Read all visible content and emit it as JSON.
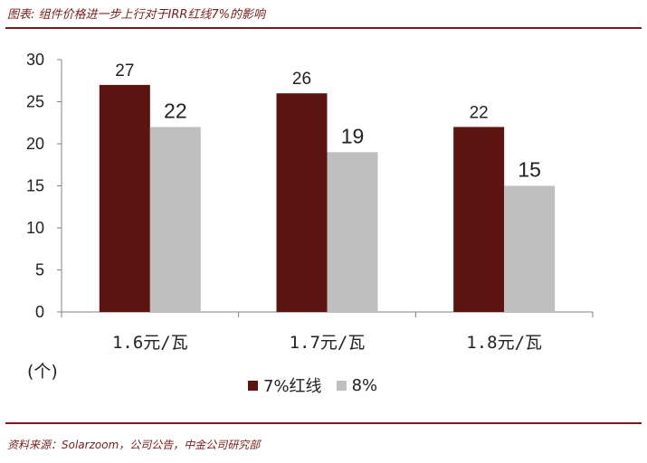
{
  "title": "图表: 组件价格进一步上行对于IRR红线7%的影响",
  "source": "资料来源：Solarzoom，公司公告，中金公司研究部",
  "unit": "(个)",
  "colors": {
    "series1": "#5c1410",
    "series2": "#bfbfbf",
    "accent": "#7a1c1c"
  },
  "chart_data": {
    "type": "bar",
    "categories": [
      "1.6元/瓦",
      "1.7元/瓦",
      "1.8元/瓦"
    ],
    "series": [
      {
        "name": "7%红线",
        "values": [
          27,
          26,
          22
        ]
      },
      {
        "name": "8%",
        "values": [
          22,
          19,
          15
        ]
      }
    ],
    "ylim": [
      0,
      30
    ],
    "yticks": [
      0,
      5,
      10,
      15,
      20,
      25,
      30
    ],
    "xlabel": "",
    "ylabel": "",
    "grid": false,
    "legend_position": "bottom"
  }
}
